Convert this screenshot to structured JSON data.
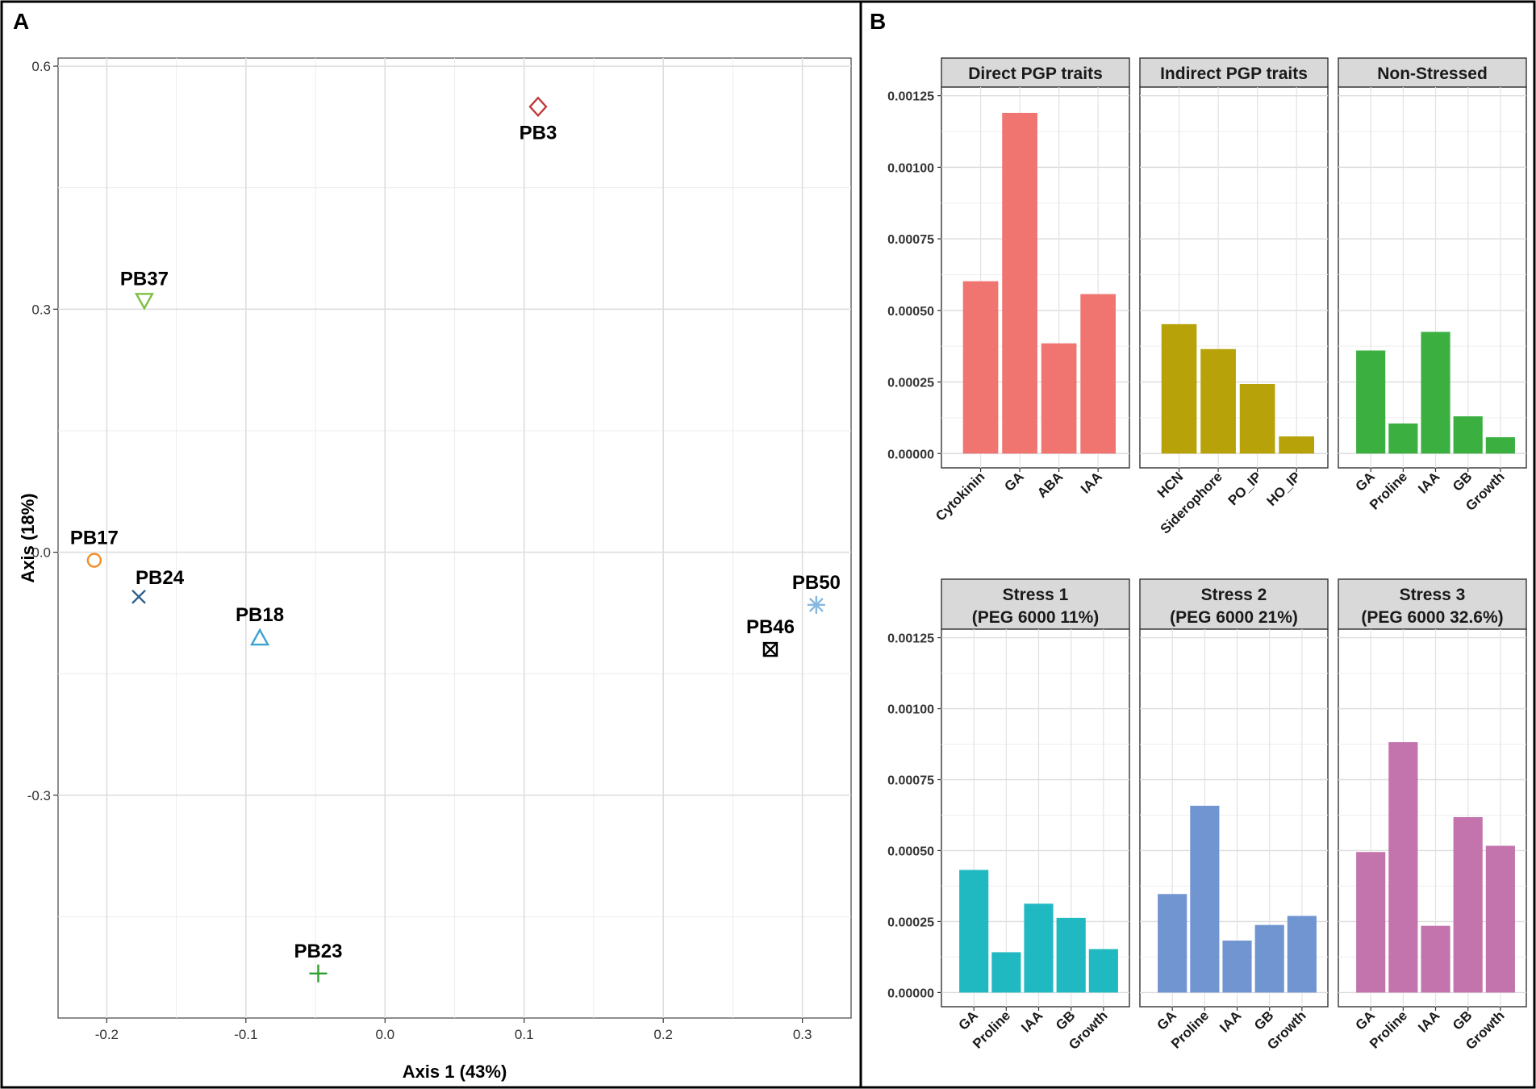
{
  "chart_data": [
    {
      "panel": "A",
      "type": "scatter",
      "xlabel": "Axis 1 (43%)",
      "ylabel": "Axis (18%)",
      "xlim": [
        -0.235,
        0.335
      ],
      "ylim": [
        -0.575,
        0.61
      ],
      "xticks": [
        -0.2,
        -0.1,
        0.0,
        0.1,
        0.2,
        0.3
      ],
      "xtick_labels": [
        "-0.2",
        "-0.1",
        "0.0",
        "0.1",
        "0.2",
        "0.3"
      ],
      "yticks": [
        -0.3,
        0.0,
        0.3,
        0.6
      ],
      "ytick_labels": [
        "-0.3",
        "0.0",
        "0.3",
        "0.6"
      ],
      "points": [
        {
          "label": "PB3",
          "x": 0.11,
          "y": 0.55,
          "shape": "diamond",
          "color": "#c0393b",
          "label_pos": "below"
        },
        {
          "label": "PB37",
          "x": -0.173,
          "y": 0.31,
          "shape": "triangle-down",
          "color": "#7cc142",
          "label_pos": "above"
        },
        {
          "label": "PB17",
          "x": -0.209,
          "y": -0.01,
          "shape": "circle",
          "color": "#f28e2b",
          "label_pos": "above"
        },
        {
          "label": "PB24",
          "x": -0.177,
          "y": -0.055,
          "shape": "x",
          "color": "#2c5f8a",
          "label_pos": "above-right"
        },
        {
          "label": "PB18",
          "x": -0.09,
          "y": -0.105,
          "shape": "triangle-up",
          "color": "#3ba3d0",
          "label_pos": "above"
        },
        {
          "label": "PB23",
          "x": -0.048,
          "y": -0.52,
          "shape": "plus",
          "color": "#2ca02c",
          "label_pos": "above"
        },
        {
          "label": "PB46",
          "x": 0.277,
          "y": -0.12,
          "shape": "boxx",
          "color": "#000000",
          "label_pos": "above"
        },
        {
          "label": "PB50",
          "x": 0.31,
          "y": -0.065,
          "shape": "star",
          "color": "#86b7e0",
          "label_pos": "above"
        }
      ]
    },
    {
      "panel": "B",
      "type": "bar",
      "ylim": [
        -5e-05,
        0.00128
      ],
      "yticks": [
        0,
        0.00025,
        0.0005,
        0.00075,
        0.001,
        0.00125
      ],
      "ytick_labels": [
        "0.00000",
        "0.00025",
        "0.00050",
        "0.00075",
        "0.00100",
        "0.00125"
      ],
      "facets": [
        {
          "title": [
            "Direct PGP traits"
          ],
          "color": "#f07470",
          "categories": [
            "Cytokinin",
            "GA",
            "ABA",
            "IAA"
          ],
          "values": [
            0.000602,
            0.00119,
            0.000385,
            0.000557
          ]
        },
        {
          "title": [
            "Indirect PGP traits"
          ],
          "color": "#b8a20a",
          "categories": [
            "HCN",
            "Siderophore",
            "PO_IP",
            "HO_IP"
          ],
          "values": [
            0.000452,
            0.000365,
            0.000243,
            6e-05
          ]
        },
        {
          "title": [
            "Non-Stressed"
          ],
          "color": "#3bb041",
          "categories": [
            "GA",
            "Proline",
            "IAA",
            "GB",
            "Growth"
          ],
          "values": [
            0.00036,
            0.000105,
            0.000425,
            0.00013,
            5.7e-05
          ]
        },
        {
          "title": [
            "Stress 1",
            "(PEG 6000 11%)"
          ],
          "color": "#21b9c1",
          "categories": [
            "GA",
            "Proline",
            "IAA",
            "GB",
            "Growth"
          ],
          "values": [
            0.000432,
            0.000142,
            0.000313,
            0.000263,
            0.000153
          ]
        },
        {
          "title": [
            "Stress 2",
            "(PEG 6000 21%)"
          ],
          "color": "#7095d1",
          "categories": [
            "GA",
            "Proline",
            "IAA",
            "GB",
            "Growth"
          ],
          "values": [
            0.000347,
            0.000658,
            0.000183,
            0.000238,
            0.00027
          ]
        },
        {
          "title": [
            "Stress 3",
            "(PEG 6000 32.6%)"
          ],
          "color": "#c374ac",
          "categories": [
            "GA",
            "Proline",
            "IAA",
            "GB",
            "Growth"
          ],
          "values": [
            0.000495,
            0.000882,
            0.000235,
            0.000618,
            0.000517
          ]
        }
      ]
    }
  ],
  "figure": {
    "panel_a_letter": "A",
    "panel_b_letter": "B"
  }
}
